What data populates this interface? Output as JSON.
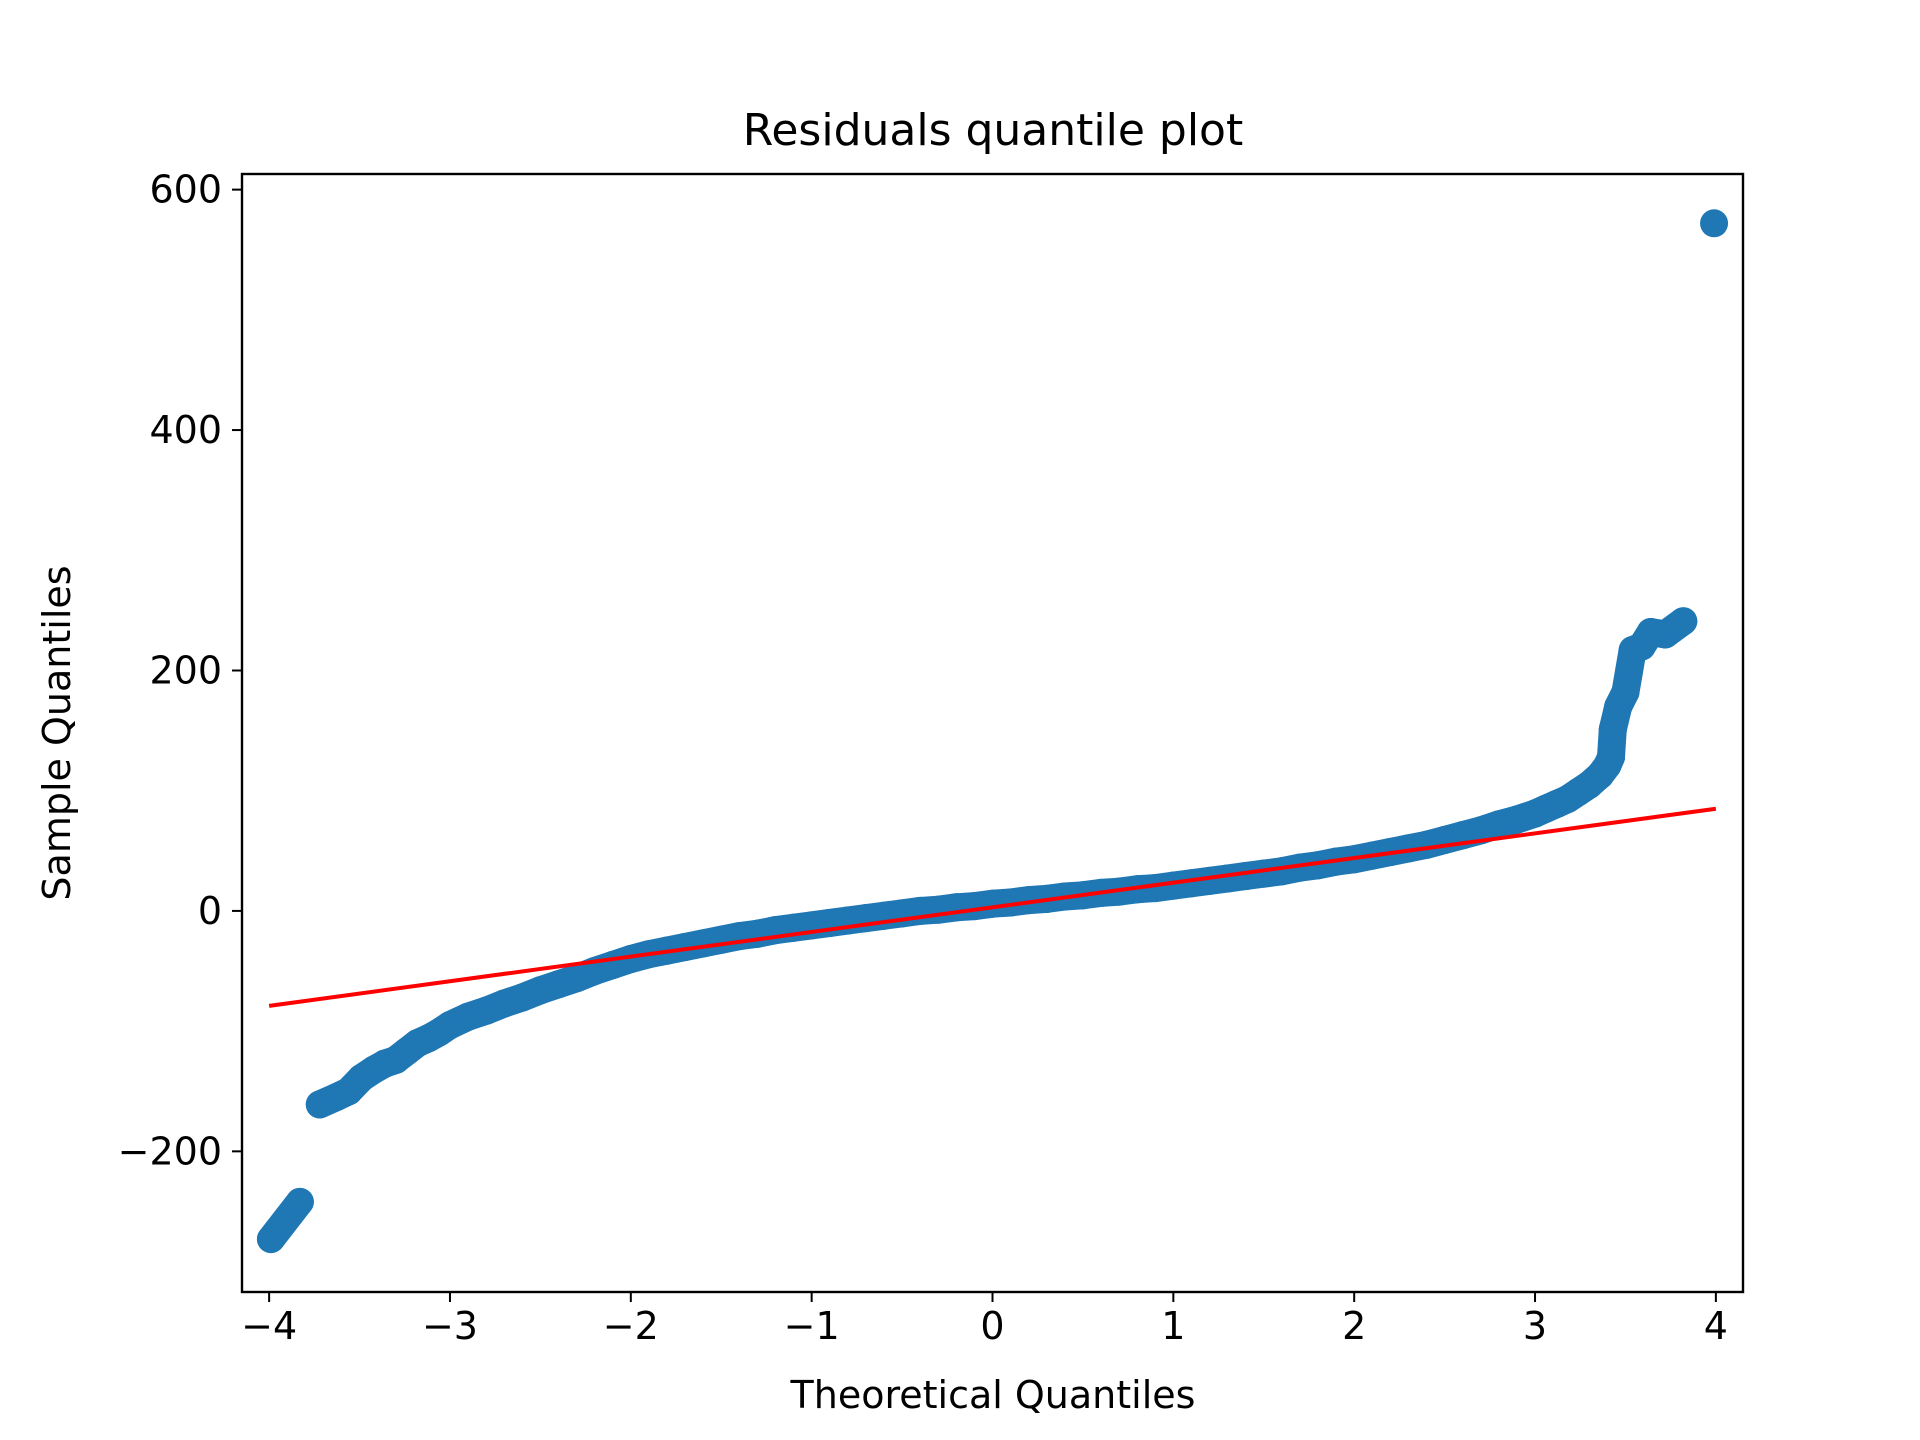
{
  "chart_data": {
    "type": "scatter",
    "title": "Residuals quantile plot",
    "xlabel": "Theoretical Quantiles",
    "ylabel": "Sample Quantiles",
    "xlim": [
      -4.15,
      4.15
    ],
    "ylim": [
      -317,
      613
    ],
    "xticks": [
      {
        "value": -4,
        "label": "−4"
      },
      {
        "value": -3,
        "label": "−3"
      },
      {
        "value": -2,
        "label": "−2"
      },
      {
        "value": -1,
        "label": "−1"
      },
      {
        "value": 0,
        "label": "0"
      },
      {
        "value": 1,
        "label": "1"
      },
      {
        "value": 2,
        "label": "2"
      },
      {
        "value": 3,
        "label": "3"
      },
      {
        "value": 4,
        "label": "4"
      }
    ],
    "yticks": [
      {
        "value": -200,
        "label": "−200"
      },
      {
        "value": 0,
        "label": "0"
      },
      {
        "value": 200,
        "label": "200"
      },
      {
        "value": 400,
        "label": "400"
      },
      {
        "value": 600,
        "label": "600"
      }
    ],
    "grid": false,
    "colors": {
      "points": "#1f77b4",
      "reference_line": "#ff0000"
    },
    "series": [
      {
        "kind": "points",
        "points": [
          {
            "x": -3.99,
            "y": -273
          },
          {
            "x": -3.83,
            "y": -242
          },
          {
            "x": -3.72,
            "y": -161
          },
          {
            "x": -3.63,
            "y": -155
          },
          {
            "x": -3.56,
            "y": -150
          },
          {
            "x": -3.49,
            "y": -139
          },
          {
            "x": -3.42,
            "y": -132
          },
          {
            "x": -3.36,
            "y": -127
          },
          {
            "x": -3.3,
            "y": -124
          },
          {
            "x": -3.24,
            "y": -117
          },
          {
            "x": -3.18,
            "y": -110
          },
          {
            "x": -3.12,
            "y": -106
          },
          {
            "x": -3.06,
            "y": -101
          },
          {
            "x": -3.0,
            "y": -95
          },
          {
            "x": -2.9,
            "y": -88
          },
          {
            "x": -2.8,
            "y": -83
          },
          {
            "x": -2.7,
            "y": -77
          },
          {
            "x": -2.6,
            "y": -72
          },
          {
            "x": -2.5,
            "y": -66
          },
          {
            "x": -2.4,
            "y": -61
          },
          {
            "x": -2.3,
            "y": -56
          },
          {
            "x": -2.2,
            "y": -50
          },
          {
            "x": -2.1,
            "y": -45
          },
          {
            "x": -2.0,
            "y": -40
          },
          {
            "x": -1.9,
            "y": -36
          },
          {
            "x": -1.8,
            "y": -33
          },
          {
            "x": -1.7,
            "y": -30
          },
          {
            "x": -1.6,
            "y": -27
          },
          {
            "x": -1.5,
            "y": -24
          },
          {
            "x": -1.4,
            "y": -21
          },
          {
            "x": -1.3,
            "y": -19
          },
          {
            "x": -1.2,
            "y": -16
          },
          {
            "x": -1.1,
            "y": -14
          },
          {
            "x": -1.0,
            "y": -12
          },
          {
            "x": -0.9,
            "y": -10
          },
          {
            "x": -0.8,
            "y": -8
          },
          {
            "x": -0.7,
            "y": -6
          },
          {
            "x": -0.6,
            "y": -4
          },
          {
            "x": -0.5,
            "y": -2
          },
          {
            "x": -0.4,
            "y": 0
          },
          {
            "x": -0.3,
            "y": 1
          },
          {
            "x": -0.2,
            "y": 3
          },
          {
            "x": -0.1,
            "y": 4
          },
          {
            "x": 0.0,
            "y": 6
          },
          {
            "x": 0.1,
            "y": 7
          },
          {
            "x": 0.2,
            "y": 9
          },
          {
            "x": 0.3,
            "y": 10
          },
          {
            "x": 0.4,
            "y": 12
          },
          {
            "x": 0.5,
            "y": 13
          },
          {
            "x": 0.6,
            "y": 15
          },
          {
            "x": 0.7,
            "y": 16
          },
          {
            "x": 0.8,
            "y": 18
          },
          {
            "x": 0.9,
            "y": 19
          },
          {
            "x": 1.0,
            "y": 21
          },
          {
            "x": 1.1,
            "y": 23
          },
          {
            "x": 1.2,
            "y": 25
          },
          {
            "x": 1.3,
            "y": 27
          },
          {
            "x": 1.4,
            "y": 29
          },
          {
            "x": 1.5,
            "y": 31
          },
          {
            "x": 1.6,
            "y": 33
          },
          {
            "x": 1.7,
            "y": 36
          },
          {
            "x": 1.8,
            "y": 38
          },
          {
            "x": 1.9,
            "y": 41
          },
          {
            "x": 2.0,
            "y": 43
          },
          {
            "x": 2.1,
            "y": 46
          },
          {
            "x": 2.2,
            "y": 49
          },
          {
            "x": 2.3,
            "y": 52
          },
          {
            "x": 2.4,
            "y": 55
          },
          {
            "x": 2.5,
            "y": 59
          },
          {
            "x": 2.6,
            "y": 63
          },
          {
            "x": 2.7,
            "y": 67
          },
          {
            "x": 2.8,
            "y": 72
          },
          {
            "x": 2.9,
            "y": 76
          },
          {
            "x": 3.0,
            "y": 81
          },
          {
            "x": 3.06,
            "y": 85
          },
          {
            "x": 3.12,
            "y": 89
          },
          {
            "x": 3.18,
            "y": 93
          },
          {
            "x": 3.24,
            "y": 99
          },
          {
            "x": 3.3,
            "y": 105
          },
          {
            "x": 3.36,
            "y": 113
          },
          {
            "x": 3.4,
            "y": 121
          },
          {
            "x": 3.42,
            "y": 128
          },
          {
            "x": 3.43,
            "y": 151
          },
          {
            "x": 3.46,
            "y": 170
          },
          {
            "x": 3.5,
            "y": 182
          },
          {
            "x": 3.54,
            "y": 217
          },
          {
            "x": 3.59,
            "y": 220
          },
          {
            "x": 3.64,
            "y": 232
          },
          {
            "x": 3.72,
            "y": 230
          },
          {
            "x": 3.82,
            "y": 241
          },
          {
            "x": 3.99,
            "y": 572
          }
        ]
      },
      {
        "kind": "line",
        "points": [
          {
            "x": -4.0,
            "y": -79
          },
          {
            "x": 4.0,
            "y": 85
          }
        ]
      }
    ]
  }
}
